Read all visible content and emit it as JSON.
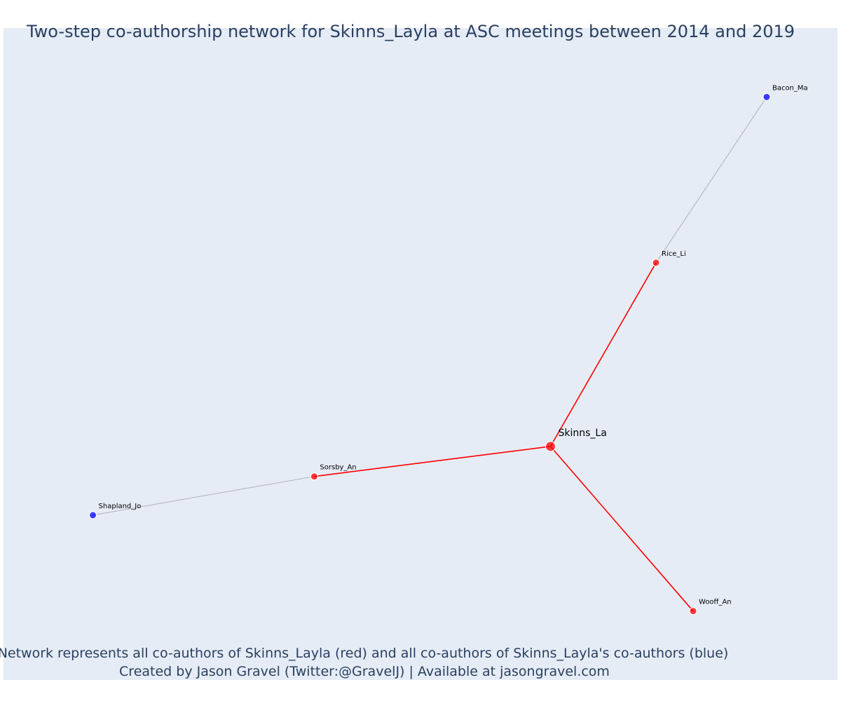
{
  "chart": {
    "title": "Two-step co-authorship network for Skinns_Layla at ASC meetings between 2014 and 2019",
    "annotation_line1": "Network represents all co-authors of Skinns_Layla (red) and all co-authors of Skinns_Layla's co-authors (blue)",
    "annotation_line2": "Created by Jason Gravel (Twitter:@GravelJ) | Available at jasongravel.com",
    "colors": {
      "background": "#e5ecf6",
      "first_step": "#ff0000",
      "second_step": "#0000ff",
      "second_step_edge": "#b0b0c0",
      "node_outline": "#ffffff"
    }
  },
  "chart_data": {
    "type": "network",
    "xlim": [
      0,
      1
    ],
    "ylim": [
      0,
      1
    ],
    "grid": false,
    "nodes": [
      {
        "id": "Skinns_La",
        "label": "Skinns_La",
        "group": "ego",
        "x": 0.675,
        "y": 0.34
      },
      {
        "id": "Rice_Li",
        "label": "Rice_Li",
        "group": "first",
        "x": 0.817,
        "y": 0.658
      },
      {
        "id": "Sorsby_An",
        "label": "Sorsby_An",
        "group": "first",
        "x": 0.357,
        "y": 0.288
      },
      {
        "id": "Wooff_An",
        "label": "Wooff_An",
        "group": "first",
        "x": 0.867,
        "y": 0.055
      },
      {
        "id": "Bacon_Ma",
        "label": "Bacon_Ma",
        "group": "second",
        "x": 0.966,
        "y": 0.945
      },
      {
        "id": "Shapland_Jo",
        "label": "Shapland_Jo",
        "group": "second",
        "x": 0.059,
        "y": 0.221
      }
    ],
    "edges": [
      {
        "source": "Skinns_La",
        "target": "Rice_Li",
        "step": 1
      },
      {
        "source": "Skinns_La",
        "target": "Sorsby_An",
        "step": 1
      },
      {
        "source": "Skinns_La",
        "target": "Wooff_An",
        "step": 1
      },
      {
        "source": "Rice_Li",
        "target": "Bacon_Ma",
        "step": 2
      },
      {
        "source": "Sorsby_An",
        "target": "Shapland_Jo",
        "step": 2
      }
    ]
  }
}
